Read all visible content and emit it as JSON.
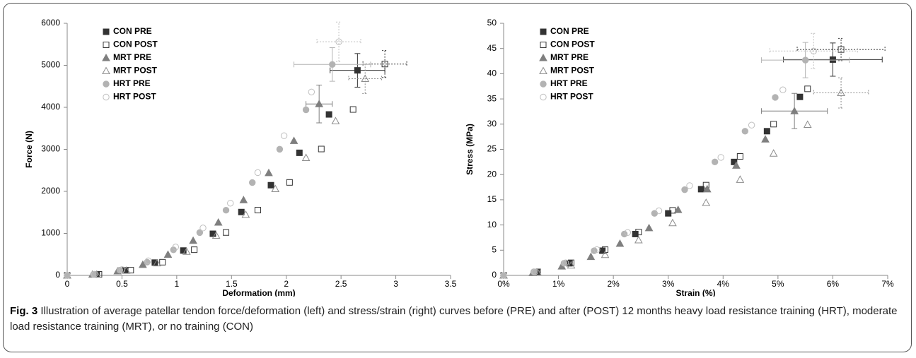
{
  "chart_data": [
    {
      "type": "scatter",
      "xlabel": "Deformation (mm)",
      "ylabel": "Force (N)",
      "xlim": [
        0,
        3.5
      ],
      "xticks": [
        0,
        0.5,
        1,
        1.5,
        2,
        2.5,
        3,
        3.5
      ],
      "ylim": [
        0,
        6000
      ],
      "yticks": [
        0,
        1000,
        2000,
        3000,
        4000,
        5000,
        6000
      ],
      "legend": "upper left",
      "grid": false,
      "series": [
        {
          "name": "CON PRE",
          "color": "#333333",
          "marker": "square",
          "filled": true,
          "x": [
            0,
            0.27,
            0.53,
            0.8,
            1.06,
            1.33,
            1.59,
            1.86,
            2.12,
            2.39,
            2.65
          ],
          "y": [
            0,
            24,
            121,
            305,
            592,
            991,
            1508,
            2147,
            2918,
            3831,
            4880
          ],
          "x_error": 0.25,
          "y_error": 400
        },
        {
          "name": "CON POST",
          "color": "#333333",
          "marker": "square",
          "filled": false,
          "x": [
            0,
            0.29,
            0.58,
            0.87,
            1.16,
            1.45,
            1.74,
            2.03,
            2.32,
            2.61,
            2.9
          ],
          "y": [
            0,
            25,
            124,
            314,
            611,
            1021,
            1554,
            2213,
            3008,
            3949,
            5030
          ],
          "x_error": 0.2,
          "y_error": 320
        },
        {
          "name": "MRT PRE",
          "color": "#7f7f7f",
          "marker": "triangle",
          "filled": true,
          "x": [
            0,
            0.23,
            0.46,
            0.69,
            0.92,
            1.15,
            1.38,
            1.61,
            1.84,
            2.07,
            2.3
          ],
          "y": [
            0,
            20,
            101,
            255,
            495,
            828,
            1261,
            1795,
            2440,
            3203,
            4080
          ],
          "x_error": 0.12,
          "y_error": 450
        },
        {
          "name": "MRT POST",
          "color": "#8c8c8c",
          "marker": "triangle",
          "filled": false,
          "x": [
            0,
            0.27,
            0.54,
            0.82,
            1.09,
            1.36,
            1.63,
            1.9,
            2.18,
            2.45,
            2.72
          ],
          "y": [
            0,
            23,
            116,
            293,
            568,
            950,
            1446,
            2059,
            2799,
            3674,
            4680
          ],
          "x_error": 0.15,
          "y_error": 350
        },
        {
          "name": "HRT PRE",
          "color": "#b3b3b3",
          "marker": "circle",
          "filled": true,
          "x": [
            0,
            0.24,
            0.48,
            0.73,
            0.97,
            1.21,
            1.45,
            1.69,
            1.94,
            2.18,
            2.42
          ],
          "y": [
            0,
            25,
            124,
            314,
            609,
            1019,
            1551,
            2209,
            3002,
            3941,
            5020
          ],
          "x_error": 0.35,
          "y_error": 400
        },
        {
          "name": "HRT POST",
          "color": "#bfbfbf",
          "marker": "circle",
          "filled": false,
          "x": [
            0,
            0.25,
            0.5,
            0.74,
            0.99,
            1.24,
            1.49,
            1.74,
            1.98,
            2.23,
            2.48
          ],
          "y": [
            0,
            28,
            137,
            348,
            675,
            1129,
            1718,
            2446,
            3325,
            4365,
            5560
          ],
          "x_error": 0.2,
          "y_error": 470
        }
      ]
    },
    {
      "type": "scatter",
      "xlabel": "Strain (%)",
      "ylabel": "Stress (MPa)",
      "xlim": [
        0,
        7
      ],
      "xticks": [
        {
          "value": 0,
          "label": "0%"
        },
        {
          "value": 1,
          "label": "1%"
        },
        {
          "value": 2,
          "label": "2%"
        },
        {
          "value": 3,
          "label": "3%"
        },
        {
          "value": 4,
          "label": "4%"
        },
        {
          "value": 5,
          "label": "5%"
        },
        {
          "value": 6,
          "label": "6%"
        },
        {
          "value": 7,
          "label": "7%"
        }
      ],
      "ylim": [
        0,
        50
      ],
      "yticks": [
        0,
        5,
        10,
        15,
        20,
        25,
        30,
        35,
        40,
        45,
        50
      ],
      "legend": "upper left",
      "grid": false,
      "series": [
        {
          "name": "CON PRE",
          "color": "#333333",
          "marker": "square",
          "filled": true,
          "x": [
            0,
            0.6,
            1.2,
            1.8,
            2.4,
            3.0,
            3.6,
            4.2,
            4.8,
            5.4,
            6.0
          ],
          "y": [
            0,
            0.7,
            2.4,
            4.9,
            8.2,
            12.3,
            17.1,
            22.5,
            28.6,
            35.4,
            42.8
          ],
          "x_error": 0.9,
          "y_error": 3.3
        },
        {
          "name": "CON POST",
          "color": "#333333",
          "marker": "square",
          "filled": false,
          "x": [
            0,
            0.62,
            1.23,
            1.85,
            2.46,
            3.08,
            3.69,
            4.31,
            4.92,
            5.54,
            6.15
          ],
          "y": [
            0,
            0.7,
            2.5,
            5.1,
            8.6,
            12.9,
            17.9,
            23.6,
            30.0,
            37.0,
            44.8
          ],
          "x_error": 0.8,
          "y_error": 2.2
        },
        {
          "name": "MRT PRE",
          "color": "#7f7f7f",
          "marker": "triangle",
          "filled": true,
          "x": [
            0,
            0.53,
            1.06,
            1.59,
            2.12,
            2.65,
            3.18,
            3.71,
            4.24,
            4.77,
            5.3
          ],
          "y": [
            0,
            0.5,
            1.8,
            3.7,
            6.3,
            9.4,
            13.0,
            17.1,
            21.8,
            27.0,
            32.6
          ],
          "x_error": 0.6,
          "y_error": 3.5
        },
        {
          "name": "MRT POST",
          "color": "#8c8c8c",
          "marker": "triangle",
          "filled": false,
          "x": [
            0,
            0.62,
            1.23,
            1.85,
            2.46,
            3.08,
            3.69,
            4.31,
            4.92,
            5.54,
            6.15
          ],
          "y": [
            0,
            0.6,
            2.0,
            4.1,
            7.0,
            10.4,
            14.4,
            19.0,
            24.2,
            29.9,
            36.2
          ],
          "x_error": 0.5,
          "y_error": 3.0
        },
        {
          "name": "HRT PRE",
          "color": "#b3b3b3",
          "marker": "circle",
          "filled": true,
          "x": [
            0,
            0.55,
            1.1,
            1.65,
            2.2,
            2.75,
            3.3,
            3.85,
            4.4,
            4.95,
            5.5
          ],
          "y": [
            0,
            0.7,
            2.4,
            4.9,
            8.2,
            12.3,
            17.0,
            22.5,
            28.6,
            35.3,
            42.7
          ],
          "x_error": 0.8,
          "y_error": 3.5
        },
        {
          "name": "HRT POST",
          "color": "#bfbfbf",
          "marker": "circle",
          "filled": false,
          "x": [
            0,
            0.57,
            1.13,
            1.7,
            2.26,
            2.83,
            3.39,
            3.96,
            4.52,
            5.09,
            5.65
          ],
          "y": [
            0,
            0.7,
            2.5,
            5.1,
            8.5,
            12.8,
            17.8,
            23.4,
            29.8,
            36.8,
            44.5
          ],
          "x_error": 0.8,
          "y_error": 3.5
        }
      ]
    }
  ],
  "caption": {
    "label": "Fig. 3",
    "text": "Illustration of average patellar tendon force/deformation (left) and stress/strain (right) curves before (PRE) and after (POST) 12 months heavy load resistance training (HRT), moderate load resistance training (MRT), or no training (CON)"
  }
}
